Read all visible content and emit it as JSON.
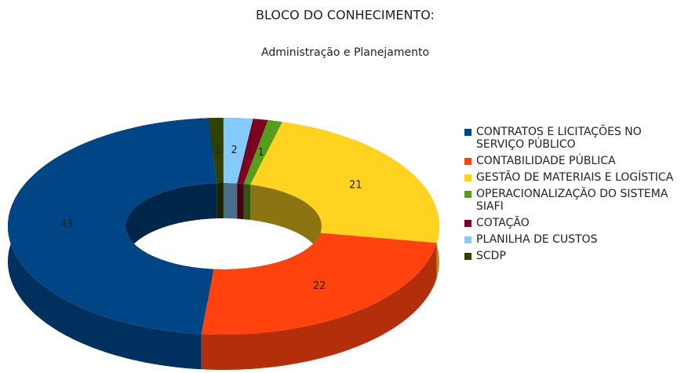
{
  "chart_data": {
    "type": "donut",
    "title": "BLOCO DO CONHECIMENTO:",
    "subtitle": "Administração e Planejamento",
    "categories": [
      "CONTRATOS E LICITAÇÕES NO SERVIÇO PÚBLICO",
      "CONTABILIDADE PÚBLICA",
      "GESTÃO DE MATERIAIS E LOGÍSTICA",
      "OPERACIONALIZAÇÃO DO SISTEMA SIAFI",
      "COTAÇÃO",
      "PLANILHA DE CUSTOS",
      "SCDP"
    ],
    "values": [
      43,
      22,
      21,
      1,
      1,
      2,
      1
    ],
    "colors": [
      "#004586",
      "#ff420e",
      "#ffd320",
      "#579d1c",
      "#7e0021",
      "#83caff",
      "#314004"
    ],
    "legend": "right"
  }
}
